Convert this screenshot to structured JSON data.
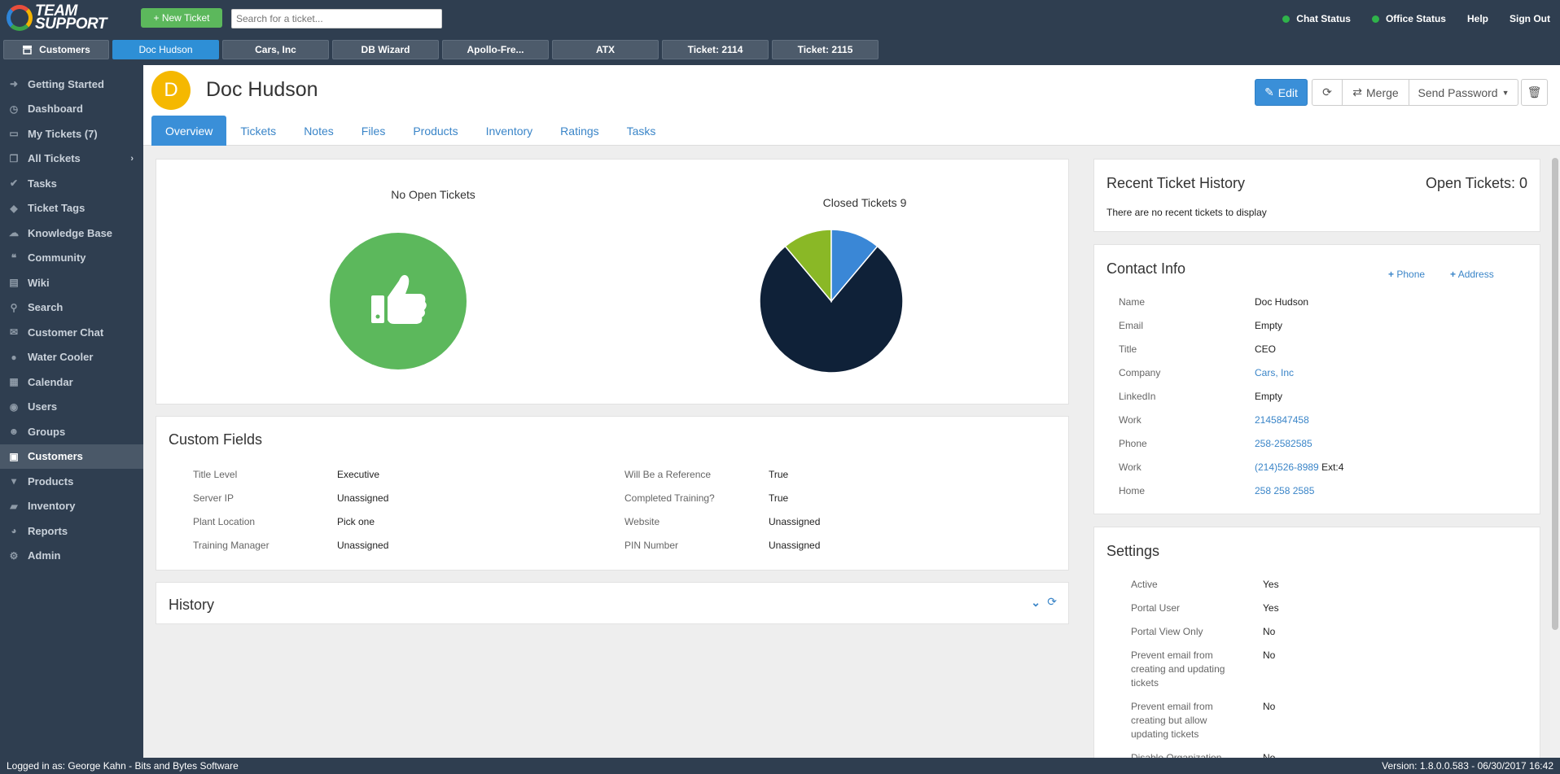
{
  "app": {
    "logo_line1": "TEAM",
    "logo_line2": "SUPPORT",
    "new_ticket_label": "+ New Ticket",
    "search_placeholder": "Search for a ticket...",
    "top_links": {
      "chat_status": "Chat Status",
      "office_status": "Office Status",
      "help": "Help",
      "sign_out": "Sign Out"
    },
    "status_color": "#2fb34a"
  },
  "open_tabs": [
    {
      "label": "Customers",
      "icon": "store-icon"
    },
    {
      "label": "Doc Hudson"
    },
    {
      "label": "Cars, Inc"
    },
    {
      "label": "DB Wizard"
    },
    {
      "label": "Apollo-Fre..."
    },
    {
      "label": "ATX"
    },
    {
      "label": "Ticket: 2114"
    },
    {
      "label": "Ticket: 2115"
    }
  ],
  "sidebar": {
    "items": [
      {
        "label": "Getting Started",
        "icon": "arrow-right-icon"
      },
      {
        "label": "Dashboard",
        "icon": "dashboard-icon"
      },
      {
        "label": "My Tickets (7)",
        "icon": "inbox-icon"
      },
      {
        "label": "All Tickets",
        "icon": "tickets-icon"
      },
      {
        "label": "Tasks",
        "icon": "check-icon"
      },
      {
        "label": "Ticket Tags",
        "icon": "tag-icon"
      },
      {
        "label": "Knowledge Base",
        "icon": "brain-icon"
      },
      {
        "label": "Community",
        "icon": "comments-icon"
      },
      {
        "label": "Wiki",
        "icon": "book-icon"
      },
      {
        "label": "Search",
        "icon": "search-icon"
      },
      {
        "label": "Customer Chat",
        "icon": "chat-icon"
      },
      {
        "label": "Water Cooler",
        "icon": "droplet-icon"
      },
      {
        "label": "Calendar",
        "icon": "calendar-icon"
      },
      {
        "label": "Users",
        "icon": "user-icon"
      },
      {
        "label": "Groups",
        "icon": "group-icon"
      },
      {
        "label": "Customers",
        "icon": "store-icon"
      },
      {
        "label": "Products",
        "icon": "cart-icon"
      },
      {
        "label": "Inventory",
        "icon": "truck-icon"
      },
      {
        "label": "Reports",
        "icon": "pie-icon"
      },
      {
        "label": "Admin",
        "icon": "gear-icon"
      }
    ]
  },
  "customer": {
    "initial": "D",
    "name": "Doc Hudson",
    "avatar_color": "#f5b800"
  },
  "actions": {
    "edit": "Edit",
    "merge": "Merge",
    "send_password": "Send Password"
  },
  "content_tabs": [
    "Overview",
    "Tickets",
    "Notes",
    "Files",
    "Products",
    "Inventory",
    "Ratings",
    "Tasks"
  ],
  "overview": {
    "open_tickets_title": "No Open Tickets",
    "closed_tickets_title": "Closed Tickets 9"
  },
  "chart_data": {
    "type": "pie",
    "title": "Closed Tickets 9",
    "slices": [
      {
        "value": 7,
        "color": "#0f2138"
      },
      {
        "value": 1,
        "color": "#8ab826"
      },
      {
        "value": 1,
        "color": "#3a87d6"
      }
    ]
  },
  "custom_fields": {
    "title": "Custom Fields",
    "left": [
      {
        "label": "Title Level",
        "value": "Executive"
      },
      {
        "label": "Server IP",
        "value": "Unassigned"
      },
      {
        "label": "Plant Location",
        "value": "Pick one"
      },
      {
        "label": "Training Manager",
        "value": "Unassigned"
      }
    ],
    "right": [
      {
        "label": "Will Be a Reference",
        "value": "True"
      },
      {
        "label": "Completed Training?",
        "value": "True"
      },
      {
        "label": "Website",
        "value": "Unassigned"
      },
      {
        "label": "PIN Number",
        "value": "Unassigned"
      }
    ]
  },
  "history": {
    "title": "History"
  },
  "recent_history": {
    "title": "Recent Ticket History",
    "open_count": "Open Tickets: 0",
    "empty_text": "There are no recent tickets to display"
  },
  "contact_info": {
    "title": "Contact Info",
    "add_phone": "Phone",
    "add_address": "Address",
    "rows": [
      {
        "label": "Name",
        "value": "Doc Hudson",
        "link": false
      },
      {
        "label": "Email",
        "value": "Empty",
        "link": false
      },
      {
        "label": "Title",
        "value": "CEO",
        "link": false
      },
      {
        "label": "Company",
        "value": "Cars, Inc",
        "link": true
      },
      {
        "label": "LinkedIn",
        "value": "Empty",
        "link": false
      },
      {
        "label": "Work",
        "value": "2145847458",
        "link": true
      },
      {
        "label": "Phone",
        "value": "258-2582585",
        "link": true
      },
      {
        "label": "Work",
        "value": "(214)526-8989",
        "suffix": "Ext:4",
        "link": true
      },
      {
        "label": "Home",
        "value": "258 258 2585",
        "link": true
      }
    ]
  },
  "settings": {
    "title": "Settings",
    "rows": [
      {
        "label": "Active",
        "value": "Yes"
      },
      {
        "label": "Portal User",
        "value": "Yes"
      },
      {
        "label": "Portal View Only",
        "value": "No"
      },
      {
        "label": "Prevent email from creating and updating tickets",
        "value": "No"
      },
      {
        "label": "Prevent email from creating but allow updating tickets",
        "value": "No"
      },
      {
        "label": "Disable Organization",
        "value": "No"
      }
    ]
  },
  "footer": {
    "logged_in": "Logged in as: George Kahn - Bits and Bytes Software",
    "version": "Version: 1.8.0.0.583 - 06/30/2017 16:42"
  }
}
